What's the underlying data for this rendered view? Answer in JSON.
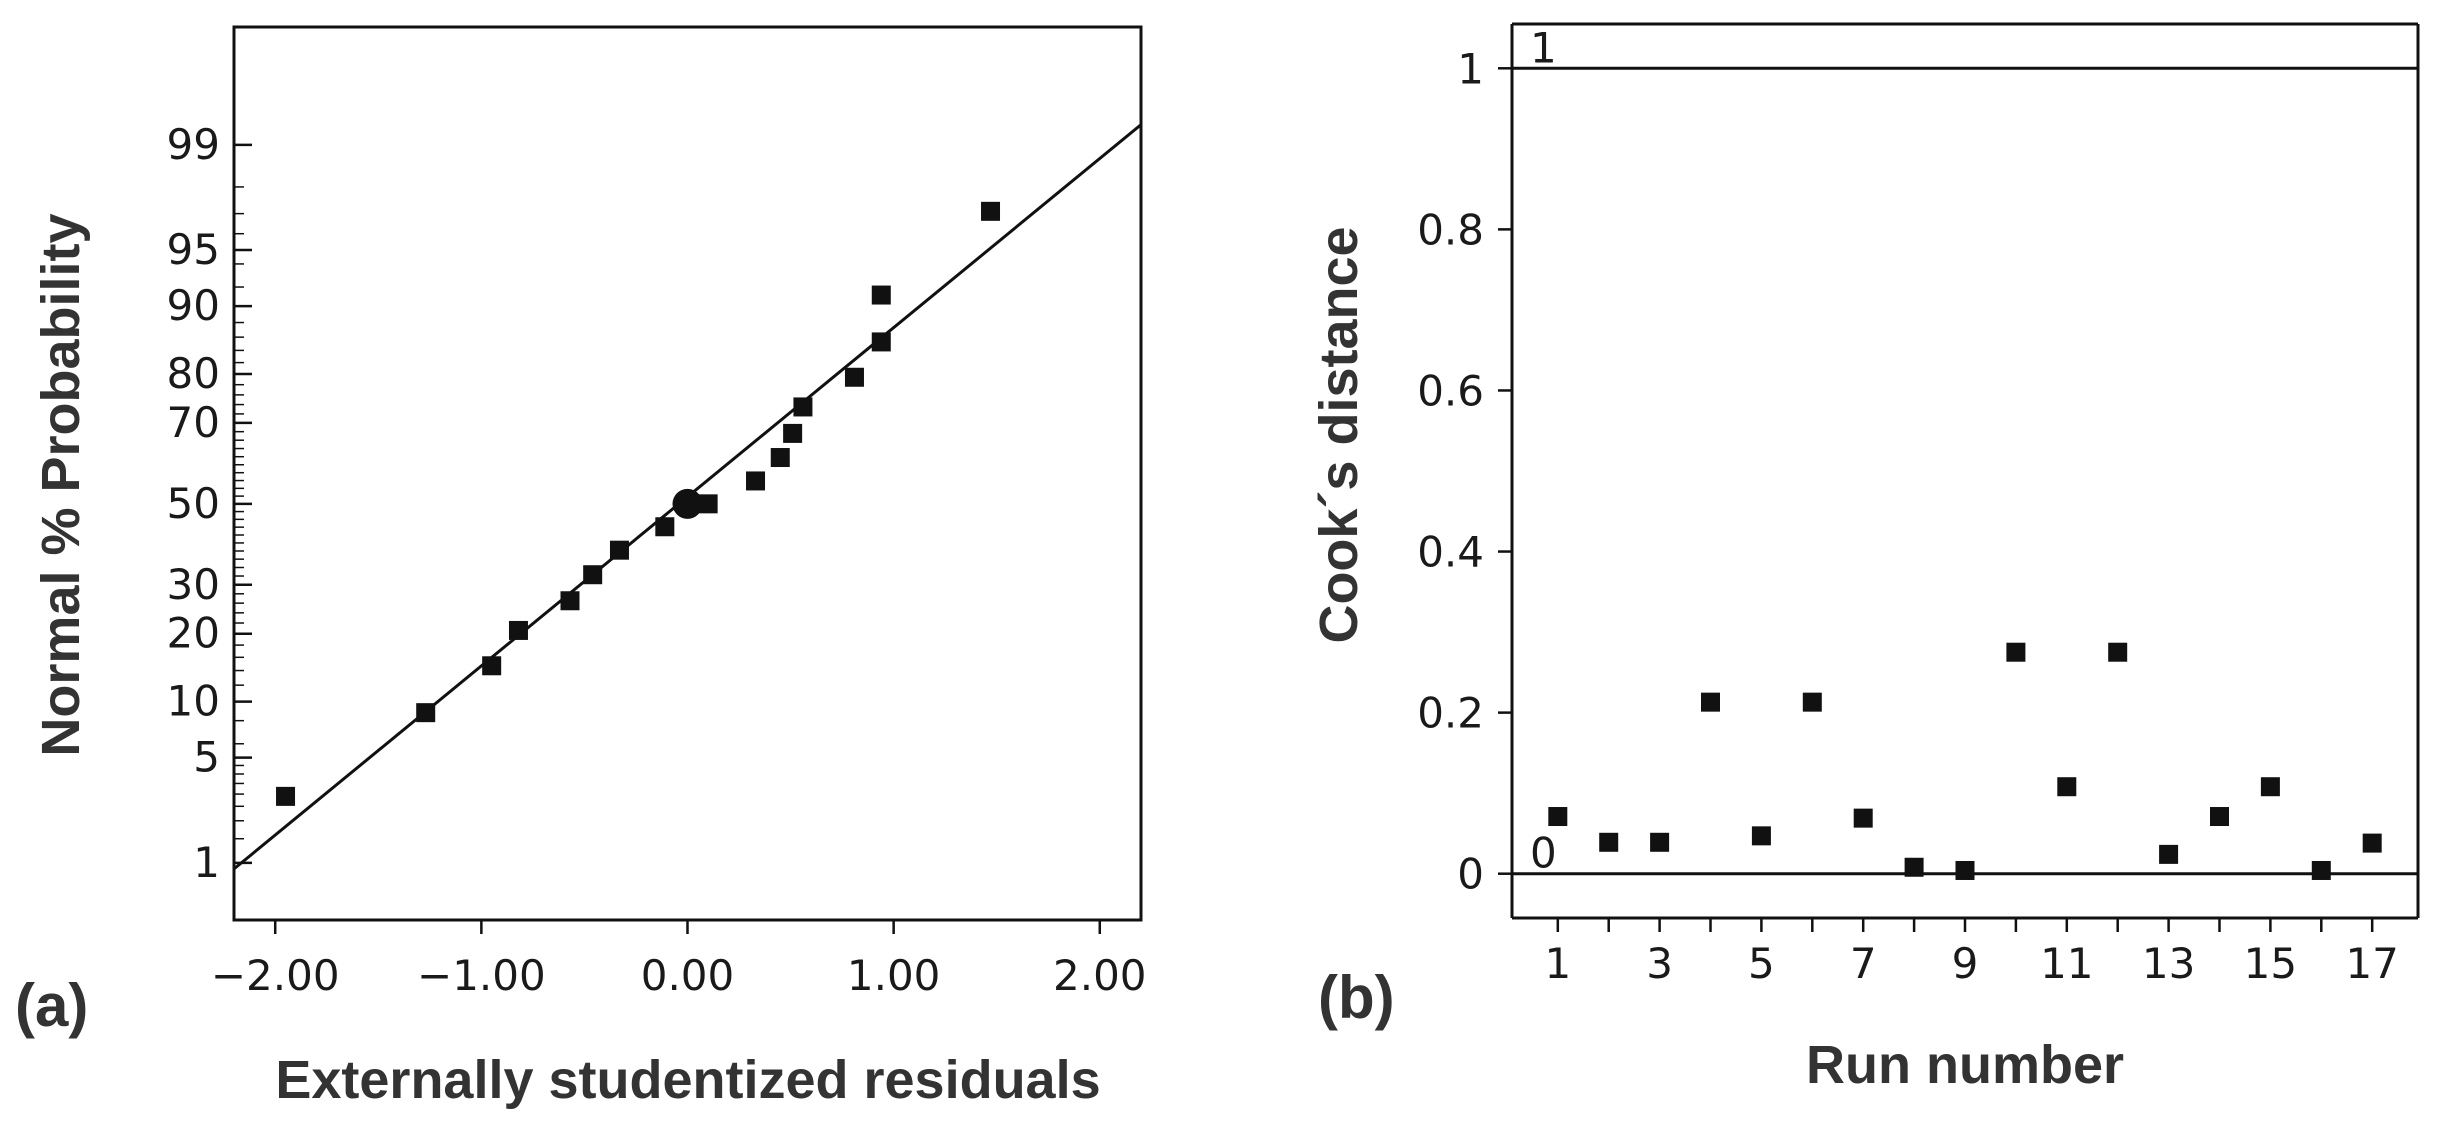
{
  "chart_data": [
    {
      "id": "a",
      "type": "scatter",
      "panel_label": "(a)",
      "title": "",
      "xlabel": "Externally studentized residuals",
      "ylabel": "Normal % Probability",
      "xlim": [
        -2.2,
        2.2
      ],
      "xticks": [
        -2.0,
        -1.0,
        0.0,
        1.0,
        2.0
      ],
      "xtick_labels": [
        "-2.00",
        "-1.00",
        "0.00",
        "1.00",
        "2.00"
      ],
      "y_scale": "normal-probability",
      "ylim_percent": [
        0.35,
        99.9
      ],
      "yticks": [
        1,
        5,
        10,
        20,
        30,
        50,
        70,
        80,
        90,
        95,
        99
      ],
      "ytick_labels": [
        "1",
        "5",
        "10",
        "20",
        "30",
        "50",
        "70",
        "80",
        "90",
        "95",
        "99"
      ],
      "series": [
        {
          "name": "residuals",
          "marker": "square",
          "points": [
            {
              "x": -1.95,
              "y": 2.9
            },
            {
              "x": -1.27,
              "y": 8.8
            },
            {
              "x": -0.95,
              "y": 14.7
            },
            {
              "x": -0.82,
              "y": 20.6
            },
            {
              "x": -0.57,
              "y": 26.5
            },
            {
              "x": -0.46,
              "y": 32.3
            },
            {
              "x": -0.33,
              "y": 38.2
            },
            {
              "x": -0.11,
              "y": 44.1
            },
            {
              "x": 0.1,
              "y": 50.0
            },
            {
              "x": 0.33,
              "y": 55.9
            },
            {
              "x": 0.45,
              "y": 61.8
            },
            {
              "x": 0.51,
              "y": 67.6
            },
            {
              "x": 0.56,
              "y": 73.5
            },
            {
              "x": 0.81,
              "y": 79.4
            },
            {
              "x": 0.94,
              "y": 85.3
            },
            {
              "x": 0.94,
              "y": 91.2
            },
            {
              "x": 1.47,
              "y": 97.1
            }
          ]
        },
        {
          "name": "highlighted point",
          "marker": "circle",
          "points": [
            {
              "x": 0.0,
              "y": 50.0
            }
          ]
        }
      ],
      "fit_line": {
        "x0": -2.2,
        "y0": 0.9,
        "x1": 2.2,
        "y1": 99.3
      }
    },
    {
      "id": "b",
      "type": "scatter",
      "panel_label": "(b)",
      "title": "",
      "xlabel": "Run number",
      "ylabel": "Cook´s distance",
      "xlim": [
        0.1,
        17.9
      ],
      "ylim": [
        -0.055,
        1.055
      ],
      "xticks": [
        1,
        3,
        5,
        7,
        9,
        11,
        13,
        15,
        17
      ],
      "xtick_labels": [
        "1",
        "3",
        "5",
        "7",
        "9",
        "11",
        "13",
        "15",
        "17"
      ],
      "yticks": [
        0,
        0.2,
        0.4,
        0.6,
        0.8,
        1
      ],
      "ytick_labels": [
        "0",
        "0.2",
        "0.4",
        "0.6",
        "0.8",
        "1"
      ],
      "reference_lines": [
        {
          "y": 1,
          "label": "1"
        },
        {
          "y": 0,
          "label": "0"
        }
      ],
      "series": [
        {
          "name": "Cook's distance",
          "marker": "square",
          "x": [
            1,
            2,
            3,
            4,
            5,
            6,
            7,
            8,
            9,
            10,
            11,
            12,
            13,
            14,
            15,
            16,
            17
          ],
          "values": [
            0.071,
            0.039,
            0.039,
            0.213,
            0.047,
            0.213,
            0.069,
            0.008,
            0.004,
            0.275,
            0.108,
            0.275,
            0.024,
            0.071,
            0.108,
            0.004,
            0.038
          ]
        }
      ]
    }
  ]
}
